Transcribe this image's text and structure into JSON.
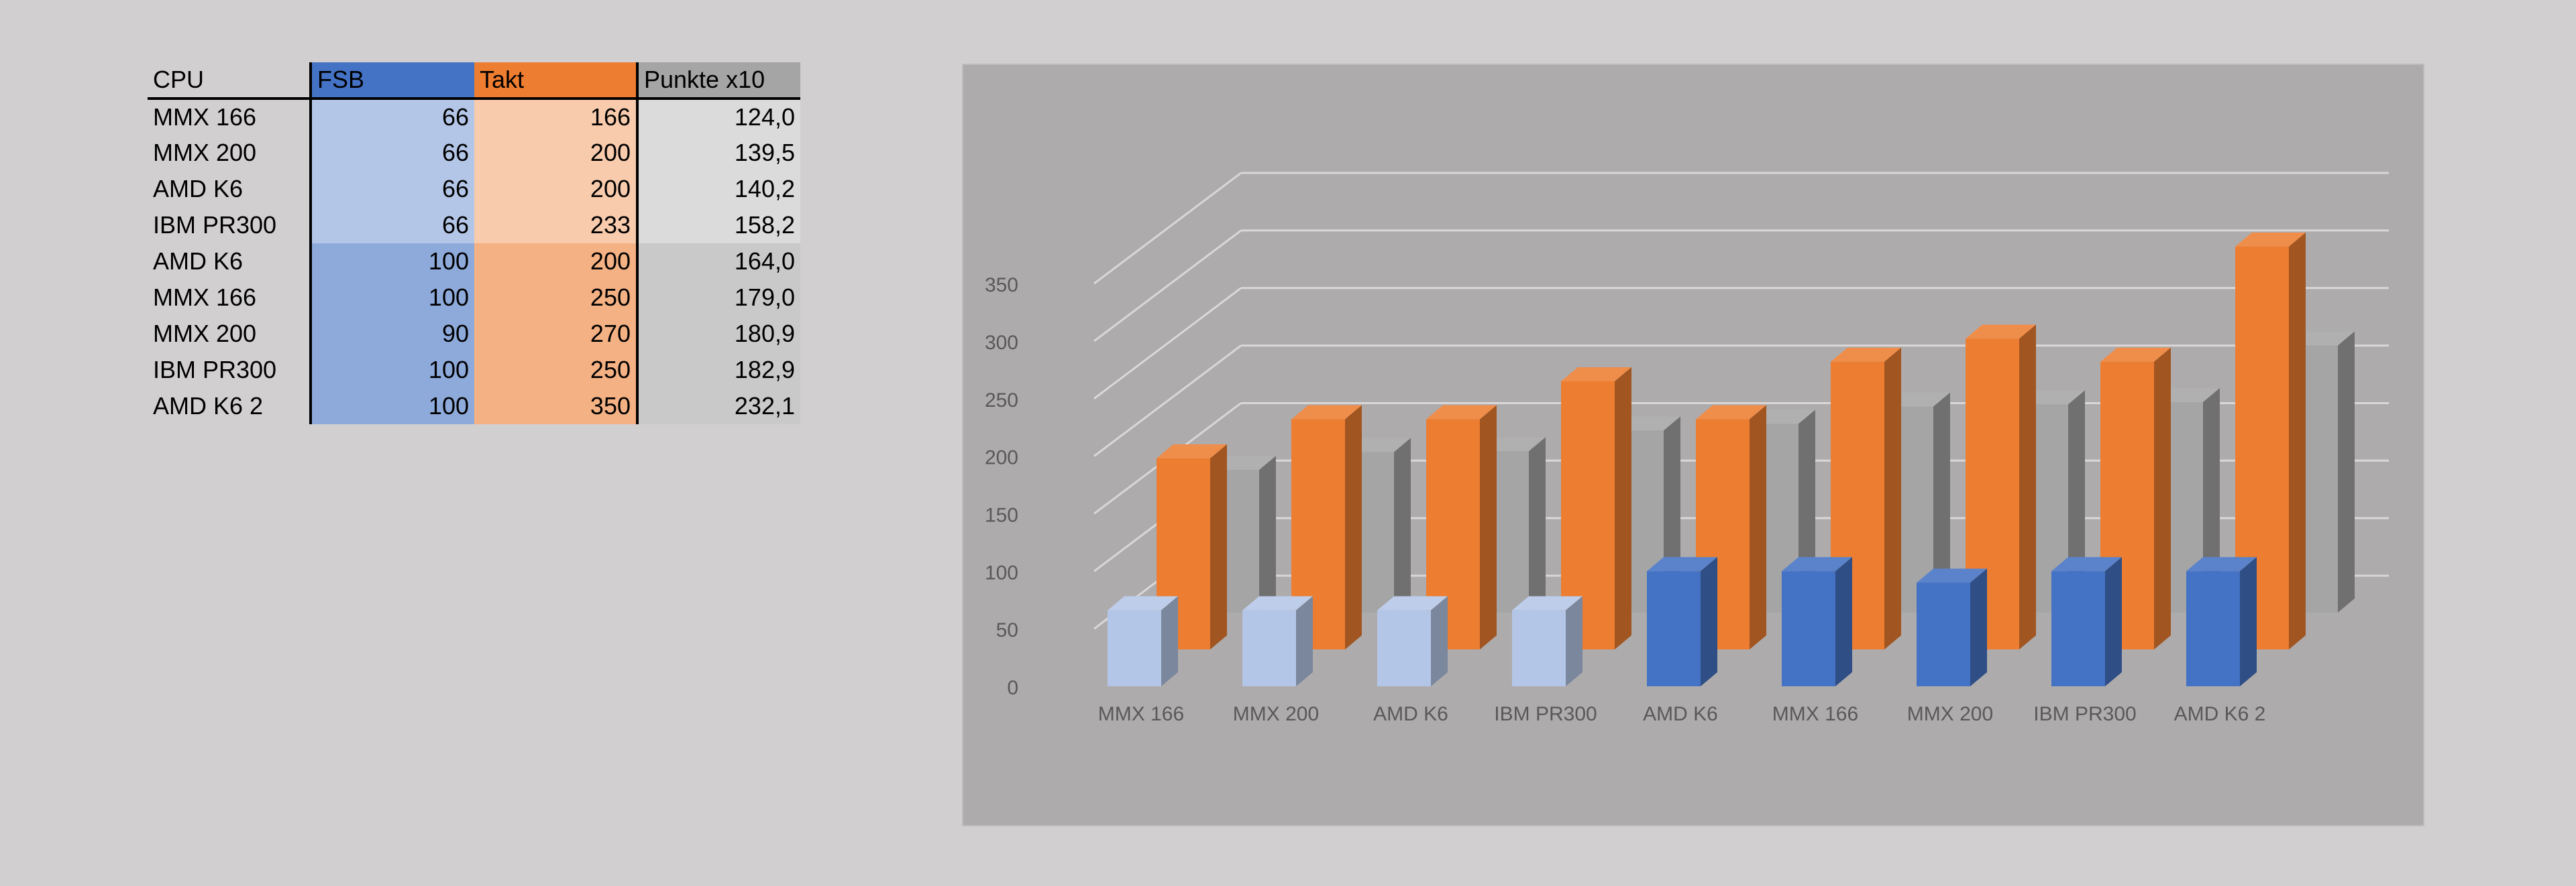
{
  "table": {
    "headers": [
      "CPU",
      "FSB",
      "Takt",
      "Punkte x10"
    ],
    "rows": [
      {
        "cpu": "MMX 166",
        "fsb": "66",
        "takt": "166",
        "punkte": "124,0"
      },
      {
        "cpu": "MMX 200",
        "fsb": "66",
        "takt": "200",
        "punkte": "139,5"
      },
      {
        "cpu": "AMD K6",
        "fsb": "66",
        "takt": "200",
        "punkte": "140,2"
      },
      {
        "cpu": "IBM PR300",
        "fsb": "66",
        "takt": "233",
        "punkte": "158,2"
      },
      {
        "cpu": "AMD K6",
        "fsb": "100",
        "takt": "200",
        "punkte": "164,0"
      },
      {
        "cpu": "MMX 166",
        "fsb": "100",
        "takt": "250",
        "punkte": "179,0"
      },
      {
        "cpu": "MMX 200",
        "fsb": "90",
        "takt": "270",
        "punkte": "180,9"
      },
      {
        "cpu": "IBM PR300",
        "fsb": "100",
        "takt": "250",
        "punkte": "182,9"
      },
      {
        "cpu": "AMD K6 2",
        "fsb": "100",
        "takt": "350",
        "punkte": "232,1"
      }
    ],
    "colors": {
      "fsb_header": "#4472c4",
      "takt_header": "#ed7d31",
      "punkte_header": "#a5a5a5",
      "fsb_light": "#b4c6e7",
      "fsb_dark": "#8eaadb",
      "takt_light": "#f8cbad",
      "takt_dark": "#f4b183",
      "punkte_light": "#dbdbdb",
      "punkte_dark": "#c9c9c9"
    }
  },
  "chart_data": {
    "type": "bar",
    "subtype": "3d-column",
    "title": "",
    "categories": [
      "MMX 166",
      "MMX 200",
      "AMD K6",
      "IBM PR300",
      "AMD K6",
      "MMX 166",
      "MMX 200",
      "IBM PR300",
      "AMD K6 2"
    ],
    "series": [
      {
        "values": [
          66,
          66,
          66,
          66,
          100,
          100,
          90,
          100,
          100
        ],
        "colors": [
          "#b4c6e7",
          "#b4c6e7",
          "#b4c6e7",
          "#b4c6e7",
          "#4472c4",
          "#4472c4",
          "#4472c4",
          "#4472c4",
          "#4472c4"
        ]
      },
      {
        "values": [
          166,
          200,
          200,
          233,
          200,
          250,
          270,
          250,
          350
        ],
        "color": "#ed7d31"
      },
      {
        "values": [
          124.0,
          139.5,
          140.2,
          158.2,
          164.0,
          179.0,
          180.9,
          182.9,
          232.1
        ],
        "color": "#a5a5a5"
      }
    ],
    "y_ticks": [
      "0",
      "50",
      "100",
      "150",
      "200",
      "250",
      "300",
      "350"
    ],
    "ylim": [
      0,
      350
    ],
    "grid": true,
    "legend": "none"
  }
}
